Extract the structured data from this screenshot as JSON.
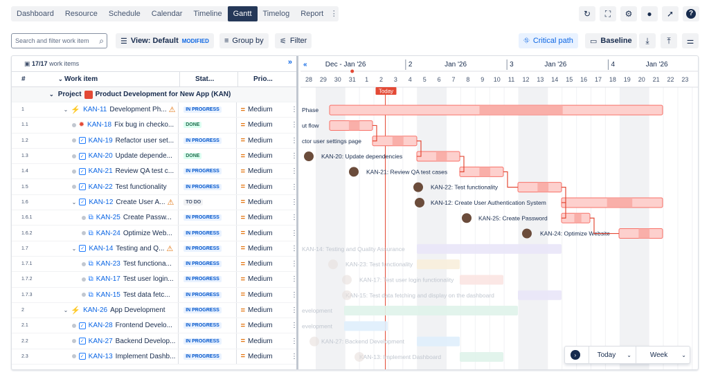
{
  "tabs": [
    "Dashboard",
    "Resource",
    "Schedule",
    "Calendar",
    "Timeline",
    "Gantt",
    "Timelog",
    "Report"
  ],
  "active_tab": "Gantt",
  "top_icons": [
    "refresh-icon",
    "fullscreen-icon",
    "gear-icon",
    "lightbulb-icon",
    "rocket-icon",
    "help-icon"
  ],
  "toolbar": {
    "search_placeholder": "Search and filter work item",
    "view_label": "View: Default",
    "view_badge": "MODIFIED",
    "group_label": "Group by",
    "filter_label": "Filter",
    "critical_label": "Critical path",
    "baseline_label": "Baseline"
  },
  "table": {
    "count": "17/17",
    "count_label": "work items",
    "headers": {
      "num": "#",
      "item": "Work item",
      "status": "Stat...",
      "priority": "Prio..."
    },
    "project_label": "Project",
    "project_name": "Product Development for New App (KAN)",
    "rows": [
      {
        "num": "1",
        "key": "KAN-11",
        "title": "Development Ph...",
        "status": "IN PROGRESS",
        "priority": "Medium",
        "type": "epic",
        "warn": true,
        "depth": 1
      },
      {
        "num": "1.1",
        "key": "KAN-18",
        "title": "Fix bug in checko...",
        "status": "DONE",
        "priority": "Medium",
        "type": "bug",
        "warn": false,
        "depth": 2
      },
      {
        "num": "1.2",
        "key": "KAN-19",
        "title": "Refactor user set...",
        "status": "IN PROGRESS",
        "priority": "Medium",
        "type": "task",
        "warn": false,
        "depth": 2
      },
      {
        "num": "1.3",
        "key": "KAN-20",
        "title": "Update depende...",
        "status": "DONE",
        "priority": "Medium",
        "type": "task",
        "warn": false,
        "depth": 2
      },
      {
        "num": "1.4",
        "key": "KAN-21",
        "title": "Review QA test c...",
        "status": "IN PROGRESS",
        "priority": "Medium",
        "type": "task",
        "warn": false,
        "depth": 2
      },
      {
        "num": "1.5",
        "key": "KAN-22",
        "title": "Test functionality",
        "status": "IN PROGRESS",
        "priority": "Medium",
        "type": "task",
        "warn": false,
        "depth": 2
      },
      {
        "num": "1.6",
        "key": "KAN-12",
        "title": "Create User A...",
        "status": "TO DO",
        "priority": "Medium",
        "type": "task",
        "warn": true,
        "depth": 2
      },
      {
        "num": "1.6.1",
        "key": "KAN-25",
        "title": "Create Passw...",
        "status": "IN PROGRESS",
        "priority": "Medium",
        "type": "subtask",
        "warn": false,
        "depth": 3
      },
      {
        "num": "1.6.2",
        "key": "KAN-24",
        "title": "Optimize Web...",
        "status": "IN PROGRESS",
        "priority": "Medium",
        "type": "subtask",
        "warn": false,
        "depth": 3
      },
      {
        "num": "1.7",
        "key": "KAN-14",
        "title": "Testing and Q...",
        "status": "IN PROGRESS",
        "priority": "Medium",
        "type": "task",
        "warn": true,
        "depth": 2
      },
      {
        "num": "1.7.1",
        "key": "KAN-23",
        "title": "Test functiona...",
        "status": "IN PROGRESS",
        "priority": "Medium",
        "type": "subtask",
        "warn": false,
        "depth": 3
      },
      {
        "num": "1.7.2",
        "key": "KAN-17",
        "title": "Test user login...",
        "status": "IN PROGRESS",
        "priority": "Medium",
        "type": "subtask",
        "warn": false,
        "depth": 3
      },
      {
        "num": "1.7.3",
        "key": "KAN-15",
        "title": "Test data fetc...",
        "status": "IN PROGRESS",
        "priority": "Medium",
        "type": "subtask",
        "warn": false,
        "depth": 3
      },
      {
        "num": "2",
        "key": "KAN-26",
        "title": "App Development",
        "status": "IN PROGRESS",
        "priority": "Medium",
        "type": "epic",
        "warn": false,
        "depth": 1
      },
      {
        "num": "2.1",
        "key": "KAN-28",
        "title": "Frontend Develo...",
        "status": "IN PROGRESS",
        "priority": "Medium",
        "type": "task",
        "warn": false,
        "depth": 2
      },
      {
        "num": "2.2",
        "key": "KAN-27",
        "title": "Backend Develop...",
        "status": "IN PROGRESS",
        "priority": "Medium",
        "type": "task",
        "warn": false,
        "depth": 2
      },
      {
        "num": "2.3",
        "key": "KAN-13",
        "title": "Implement Dashb...",
        "status": "IN PROGRESS",
        "priority": "Medium",
        "type": "task",
        "warn": false,
        "depth": 2
      }
    ]
  },
  "timeline": {
    "months": [
      {
        "label": "Dec - Jan '26",
        "week": "2"
      },
      {
        "label": "Jan '26",
        "week": "3"
      },
      {
        "label": "Jan '26",
        "week": "4"
      },
      {
        "label": "Jan '26",
        "week": ""
      }
    ],
    "days": [
      "28",
      "29",
      "30",
      "31",
      "1",
      "2",
      "3",
      "4",
      "5",
      "6",
      "7",
      "8",
      "9",
      "10",
      "11",
      "12",
      "13",
      "14",
      "15",
      "16",
      "17",
      "18",
      "19",
      "20",
      "21",
      "22",
      "23"
    ],
    "today_label": "Today",
    "bar_labels": [
      "Phase",
      "ut flow",
      "ctor user settings page",
      "KAN-20: Update dependencies",
      "KAN-21: Review QA test cases",
      "KAN-22: Test functionality",
      "KAN-12: Create User Authentication System",
      "KAN-25: Create Password",
      "KAN-24: Optimize Website",
      "KAN-14: Testing and Quality Assurance",
      "KAN-23: Test functionality",
      "KAN-17: Test user login functionality",
      "KAN-15: Test data fetching and display on the dashboard",
      "evelopment",
      "evelopment",
      "KAN-27: Backend Development",
      "KAN-13: Implement Dashboard"
    ]
  },
  "today_control": {
    "today": "Today",
    "scale": "Week"
  },
  "colors": {
    "critical": "#f87168",
    "critical_fill": "#f8a6a0",
    "today_line": "#e34935",
    "active_tab": "#253858"
  }
}
